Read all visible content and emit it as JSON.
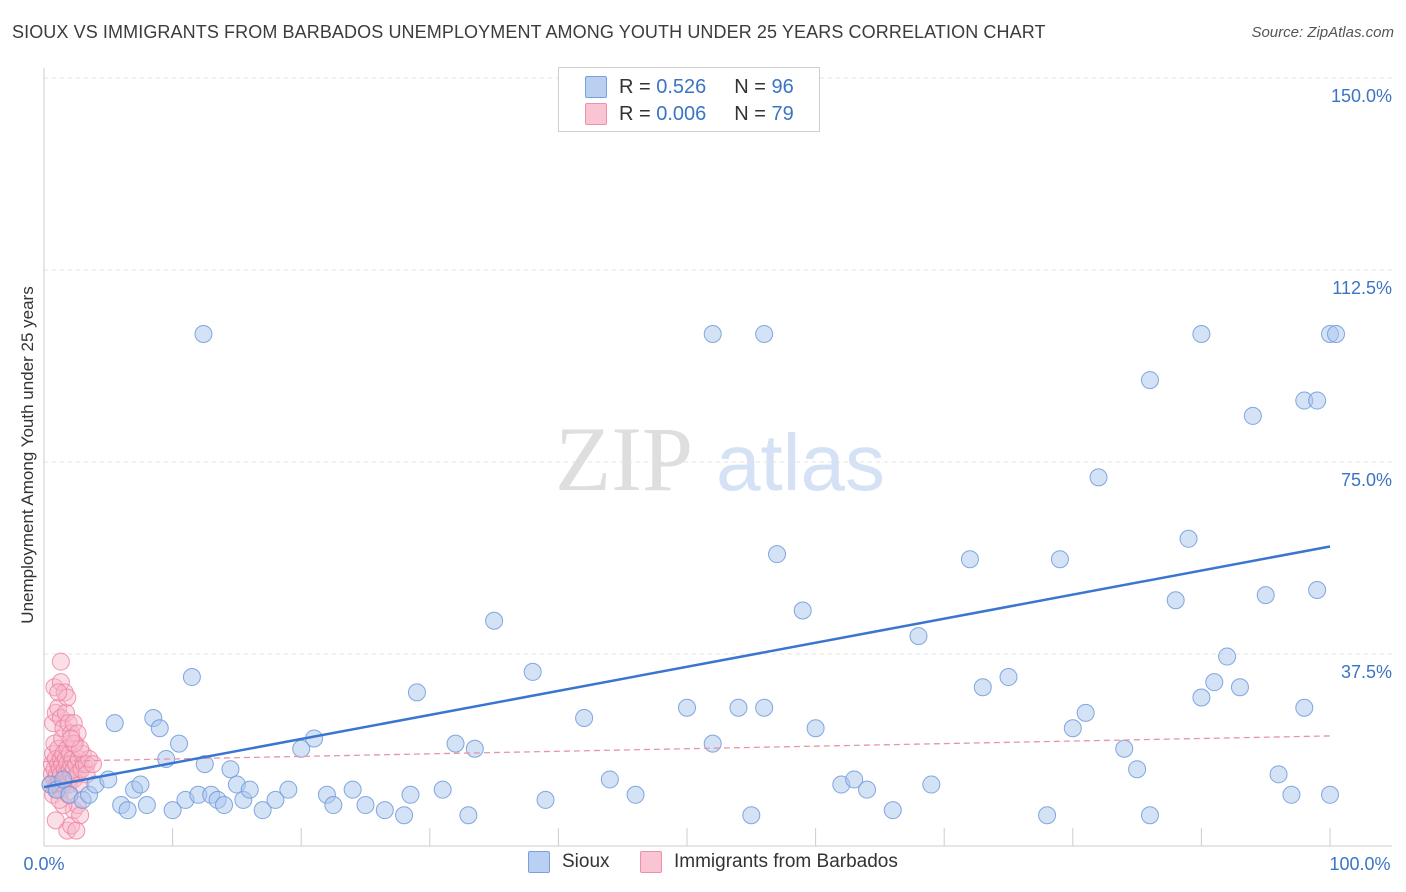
{
  "header": {
    "title": "SIOUX VS IMMIGRANTS FROM BARBADOS UNEMPLOYMENT AMONG YOUTH UNDER 25 YEARS CORRELATION CHART",
    "source": "Source: ZipAtlas.com"
  },
  "watermark": {
    "zip": "ZIP",
    "atlas": "atlas"
  },
  "legend": {
    "rows": [
      {
        "r_label": "R =",
        "r_value": "0.526",
        "n_label": "N =",
        "n_value": "96"
      },
      {
        "r_label": "R =",
        "r_value": "0.006",
        "n_label": "N =",
        "n_value": "79"
      }
    ]
  },
  "bottom_legend": {
    "series1": "Sioux",
    "series2": "Immigrants from Barbados"
  },
  "colors": {
    "blue_fill": "#aac6ee",
    "blue_stroke": "#6d99da",
    "blue_line": "#3a75d0",
    "pink_fill": "#f7b7c9",
    "pink_stroke": "#ee7fa0",
    "pink_line": "#e694ad",
    "value_text": "#3a75c4",
    "grid": "#e3e3e3"
  },
  "chart_data": {
    "type": "scatter",
    "title": "SIOUX VS IMMIGRANTS FROM BARBADOS UNEMPLOYMENT AMONG YOUTH UNDER 25 YEARS CORRELATION CHART",
    "xlabel": "",
    "ylabel": "Unemployment Among Youth under 25 years",
    "xlim": [
      0,
      100
    ],
    "ylim": [
      0,
      150
    ],
    "x_tick_labels": [
      "0.0%",
      "100.0%"
    ],
    "y_ticks": [
      37.5,
      75.0,
      112.5,
      150.0
    ],
    "y_tick_labels": [
      "37.5%",
      "75.0%",
      "112.5%",
      "150.0%"
    ],
    "series": [
      {
        "name": "Sioux",
        "R": 0.526,
        "N": 96,
        "trend": [
          [
            0,
            11.5
          ],
          [
            100,
            58.5
          ]
        ],
        "points": [
          [
            0.5,
            12
          ],
          [
            1,
            11
          ],
          [
            1.5,
            13
          ],
          [
            2,
            10
          ],
          [
            3,
            9
          ],
          [
            3.5,
            10
          ],
          [
            4,
            12
          ],
          [
            5,
            13
          ],
          [
            5.5,
            24
          ],
          [
            6,
            8
          ],
          [
            6.5,
            7
          ],
          [
            7,
            11
          ],
          [
            7.5,
            12
          ],
          [
            8,
            8
          ],
          [
            8.5,
            25
          ],
          [
            9,
            23
          ],
          [
            9.5,
            17
          ],
          [
            10,
            7
          ],
          [
            10.5,
            20
          ],
          [
            11,
            9
          ],
          [
            11.5,
            33
          ],
          [
            12,
            10
          ],
          [
            12.5,
            16
          ],
          [
            13,
            10
          ],
          [
            13.5,
            9
          ],
          [
            14,
            8
          ],
          [
            14.5,
            15
          ],
          [
            15,
            12
          ],
          [
            15.5,
            9
          ],
          [
            16,
            11
          ],
          [
            17,
            7
          ],
          [
            18,
            9
          ],
          [
            19,
            11
          ],
          [
            20,
            19
          ],
          [
            21,
            21
          ],
          [
            22,
            10
          ],
          [
            22.5,
            8
          ],
          [
            24,
            11
          ],
          [
            25,
            8
          ],
          [
            26.5,
            7
          ],
          [
            28,
            6
          ],
          [
            28.5,
            10
          ],
          [
            29,
            30
          ],
          [
            31,
            11
          ],
          [
            32,
            20
          ],
          [
            33,
            6
          ],
          [
            33.5,
            19
          ],
          [
            35,
            44
          ],
          [
            38,
            34
          ],
          [
            39,
            9
          ],
          [
            42,
            25
          ],
          [
            44,
            13
          ],
          [
            46,
            10
          ],
          [
            50,
            27
          ],
          [
            52,
            20
          ],
          [
            54,
            27
          ],
          [
            55,
            6
          ],
          [
            56,
            27
          ],
          [
            57,
            57
          ],
          [
            59,
            46
          ],
          [
            60,
            23
          ],
          [
            62,
            12
          ],
          [
            63,
            13
          ],
          [
            64,
            11
          ],
          [
            66,
            7
          ],
          [
            68,
            41
          ],
          [
            69,
            12
          ],
          [
            72,
            56
          ],
          [
            73,
            31
          ],
          [
            75,
            33
          ],
          [
            78,
            6
          ],
          [
            79,
            56
          ],
          [
            80,
            23
          ],
          [
            81,
            26
          ],
          [
            82,
            72
          ],
          [
            84,
            19
          ],
          [
            85,
            15
          ],
          [
            86,
            6
          ],
          [
            88,
            48
          ],
          [
            89,
            60
          ],
          [
            90,
            29
          ],
          [
            91,
            32
          ],
          [
            92,
            37
          ],
          [
            93,
            31
          ],
          [
            95,
            49
          ],
          [
            96,
            14
          ],
          [
            97,
            10
          ],
          [
            98,
            27
          ],
          [
            99,
            50
          ],
          [
            100,
            10
          ],
          [
            12.4,
            100
          ],
          [
            52,
            100
          ],
          [
            56,
            100
          ],
          [
            90,
            100
          ],
          [
            100,
            100
          ],
          [
            102,
            100
          ],
          [
            86,
            91
          ],
          [
            94,
            84
          ],
          [
            98,
            87
          ],
          [
            99,
            87
          ]
        ]
      },
      {
        "name": "Immigrants from Barbados",
        "R": 0.006,
        "N": 79,
        "trend": [
          [
            0,
            16.5
          ],
          [
            100,
            21.5
          ]
        ],
        "points": [
          [
            0.2,
            12
          ],
          [
            0.3,
            14
          ],
          [
            0.3,
            16
          ],
          [
            0.4,
            18
          ],
          [
            0.4,
            10
          ],
          [
            0.5,
            13
          ],
          [
            0.5,
            15
          ],
          [
            0.5,
            20
          ],
          [
            0.6,
            11
          ],
          [
            0.6,
            17
          ],
          [
            0.7,
            14
          ],
          [
            0.7,
            12
          ],
          [
            0.8,
            19
          ],
          [
            0.8,
            16
          ],
          [
            0.9,
            13
          ],
          [
            0.9,
            15
          ],
          [
            1,
            17
          ],
          [
            1,
            11
          ],
          [
            1,
            14
          ],
          [
            1.1,
            21
          ],
          [
            1.1,
            16
          ],
          [
            1.2,
            12
          ],
          [
            1.2,
            18
          ],
          [
            1.3,
            13
          ],
          [
            1.3,
            15
          ],
          [
            1.4,
            17
          ],
          [
            1.4,
            14
          ],
          [
            1.5,
            19
          ],
          [
            1.5,
            16
          ],
          [
            1.6,
            12
          ],
          [
            1.6,
            13
          ],
          [
            1.7,
            15
          ],
          [
            1.7,
            18
          ],
          [
            1.8,
            14
          ],
          [
            1.8,
            16
          ],
          [
            1.9,
            17
          ],
          [
            2,
            13
          ],
          [
            2,
            15
          ],
          [
            2.1,
            20
          ],
          [
            2.2,
            16
          ],
          [
            2.3,
            14
          ],
          [
            2.4,
            17
          ],
          [
            2.5,
            12
          ],
          [
            2.6,
            15
          ],
          [
            2.7,
            18
          ],
          [
            2.8,
            16
          ],
          [
            3,
            16
          ],
          [
            3,
            14
          ],
          [
            3.2,
            17
          ],
          [
            3.5,
            16
          ],
          [
            0.4,
            24
          ],
          [
            0.6,
            26
          ],
          [
            0.8,
            27
          ],
          [
            1,
            25
          ],
          [
            1.2,
            23
          ],
          [
            1.4,
            26
          ],
          [
            1.6,
            24
          ],
          [
            1.8,
            22
          ],
          [
            2,
            24
          ],
          [
            2.3,
            22
          ],
          [
            0.5,
            31
          ],
          [
            1,
            32
          ],
          [
            1.3,
            30
          ],
          [
            1.5,
            29
          ],
          [
            1,
            36
          ],
          [
            0.8,
            30
          ],
          [
            2,
            20
          ],
          [
            2.5,
            19
          ],
          [
            1.8,
            21
          ],
          [
            0.6,
            5
          ],
          [
            1.5,
            3
          ],
          [
            1.8,
            4
          ],
          [
            2,
            7
          ],
          [
            2.3,
            8
          ],
          [
            2.5,
            6
          ],
          [
            2.2,
            3
          ],
          [
            1.2,
            8
          ],
          [
            0.9,
            9
          ],
          [
            1.6,
            10
          ]
        ]
      }
    ],
    "legend_position": "top-center"
  }
}
